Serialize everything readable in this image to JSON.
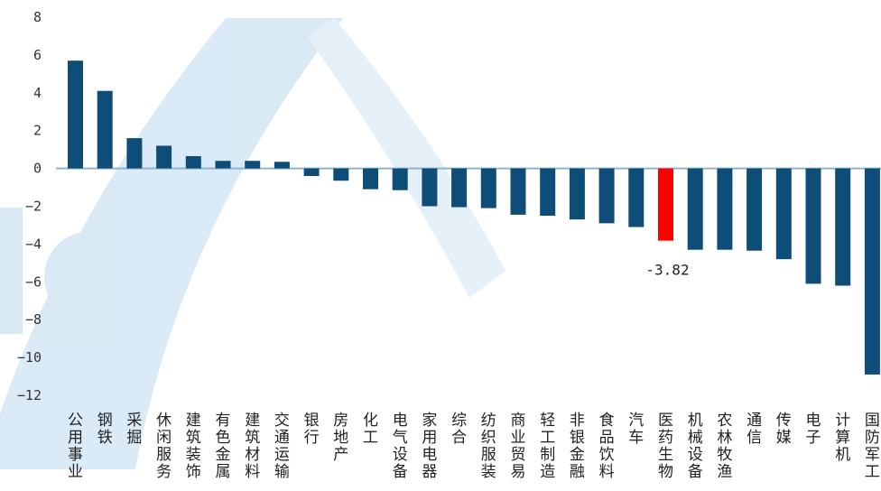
{
  "chart_data": {
    "type": "bar",
    "categories": [
      "公用事业",
      "钢铁",
      "采掘",
      "休闲服务",
      "建筑装饰",
      "有色金属",
      "建筑材料",
      "交通运输",
      "银行",
      "房地产",
      "化工",
      "电气设备",
      "家用电器",
      "综合",
      "纺织服装",
      "商业贸易",
      "轻工制造",
      "非银金融",
      "食品饮料",
      "汽车",
      "医药生物",
      "机械设备",
      "农林牧渔",
      "通信",
      "传媒",
      "电子",
      "计算机",
      "国防军工"
    ],
    "values": [
      5.7,
      4.1,
      1.6,
      1.2,
      0.65,
      0.4,
      0.4,
      0.35,
      -0.4,
      -0.65,
      -1.1,
      -1.15,
      -2.0,
      -2.05,
      -2.1,
      -2.45,
      -2.5,
      -2.7,
      -2.9,
      -3.1,
      -3.82,
      -4.3,
      -4.3,
      -4.35,
      -4.8,
      -6.1,
      -6.2,
      -10.9
    ],
    "highlight_index": 20,
    "annotation": "-3.82",
    "ylim": [
      -12,
      8
    ],
    "yticks": [
      "8",
      "6",
      "4",
      "2",
      "0",
      "−2",
      "−4",
      "−6",
      "−8",
      "−10",
      "−12"
    ],
    "title": "",
    "xlabel": "",
    "ylabel": "",
    "colors": {
      "bar": "#0d4d78",
      "highlight": "#ff0000",
      "zero_line": "#8fb3cf",
      "watermark": "#cfe4f3"
    }
  }
}
